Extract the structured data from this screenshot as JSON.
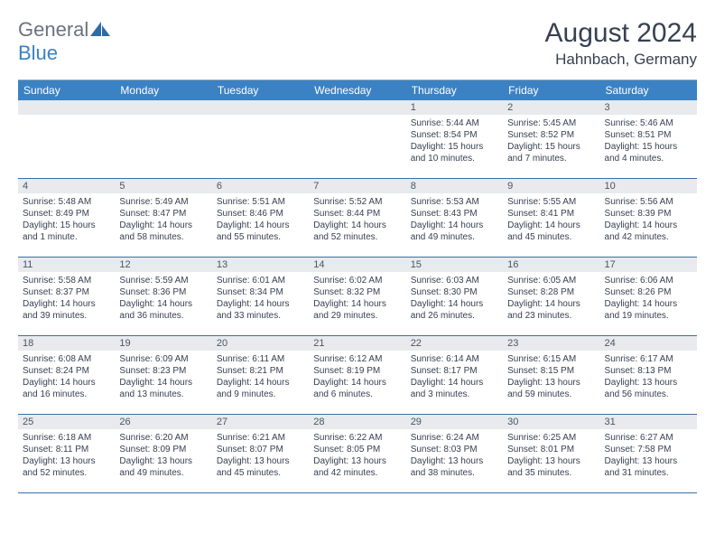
{
  "brand": {
    "part1": "General",
    "part2": "Blue"
  },
  "title": {
    "month": "August 2024",
    "location": "Hahnbach, Germany"
  },
  "colors": {
    "header_bg": "#3b82c4",
    "header_text": "#ffffff",
    "daynum_bg": "#e8eaed",
    "row_border": "#3b6fa8",
    "text": "#374151"
  },
  "dow": [
    "Sunday",
    "Monday",
    "Tuesday",
    "Wednesday",
    "Thursday",
    "Friday",
    "Saturday"
  ],
  "weeks": [
    [
      {
        "n": "",
        "sunrise": "",
        "sunset": "",
        "daylight": ""
      },
      {
        "n": "",
        "sunrise": "",
        "sunset": "",
        "daylight": ""
      },
      {
        "n": "",
        "sunrise": "",
        "sunset": "",
        "daylight": ""
      },
      {
        "n": "",
        "sunrise": "",
        "sunset": "",
        "daylight": ""
      },
      {
        "n": "1",
        "sunrise": "Sunrise: 5:44 AM",
        "sunset": "Sunset: 8:54 PM",
        "daylight": "Daylight: 15 hours and 10 minutes."
      },
      {
        "n": "2",
        "sunrise": "Sunrise: 5:45 AM",
        "sunset": "Sunset: 8:52 PM",
        "daylight": "Daylight: 15 hours and 7 minutes."
      },
      {
        "n": "3",
        "sunrise": "Sunrise: 5:46 AM",
        "sunset": "Sunset: 8:51 PM",
        "daylight": "Daylight: 15 hours and 4 minutes."
      }
    ],
    [
      {
        "n": "4",
        "sunrise": "Sunrise: 5:48 AM",
        "sunset": "Sunset: 8:49 PM",
        "daylight": "Daylight: 15 hours and 1 minute."
      },
      {
        "n": "5",
        "sunrise": "Sunrise: 5:49 AM",
        "sunset": "Sunset: 8:47 PM",
        "daylight": "Daylight: 14 hours and 58 minutes."
      },
      {
        "n": "6",
        "sunrise": "Sunrise: 5:51 AM",
        "sunset": "Sunset: 8:46 PM",
        "daylight": "Daylight: 14 hours and 55 minutes."
      },
      {
        "n": "7",
        "sunrise": "Sunrise: 5:52 AM",
        "sunset": "Sunset: 8:44 PM",
        "daylight": "Daylight: 14 hours and 52 minutes."
      },
      {
        "n": "8",
        "sunrise": "Sunrise: 5:53 AM",
        "sunset": "Sunset: 8:43 PM",
        "daylight": "Daylight: 14 hours and 49 minutes."
      },
      {
        "n": "9",
        "sunrise": "Sunrise: 5:55 AM",
        "sunset": "Sunset: 8:41 PM",
        "daylight": "Daylight: 14 hours and 45 minutes."
      },
      {
        "n": "10",
        "sunrise": "Sunrise: 5:56 AM",
        "sunset": "Sunset: 8:39 PM",
        "daylight": "Daylight: 14 hours and 42 minutes."
      }
    ],
    [
      {
        "n": "11",
        "sunrise": "Sunrise: 5:58 AM",
        "sunset": "Sunset: 8:37 PM",
        "daylight": "Daylight: 14 hours and 39 minutes."
      },
      {
        "n": "12",
        "sunrise": "Sunrise: 5:59 AM",
        "sunset": "Sunset: 8:36 PM",
        "daylight": "Daylight: 14 hours and 36 minutes."
      },
      {
        "n": "13",
        "sunrise": "Sunrise: 6:01 AM",
        "sunset": "Sunset: 8:34 PM",
        "daylight": "Daylight: 14 hours and 33 minutes."
      },
      {
        "n": "14",
        "sunrise": "Sunrise: 6:02 AM",
        "sunset": "Sunset: 8:32 PM",
        "daylight": "Daylight: 14 hours and 29 minutes."
      },
      {
        "n": "15",
        "sunrise": "Sunrise: 6:03 AM",
        "sunset": "Sunset: 8:30 PM",
        "daylight": "Daylight: 14 hours and 26 minutes."
      },
      {
        "n": "16",
        "sunrise": "Sunrise: 6:05 AM",
        "sunset": "Sunset: 8:28 PM",
        "daylight": "Daylight: 14 hours and 23 minutes."
      },
      {
        "n": "17",
        "sunrise": "Sunrise: 6:06 AM",
        "sunset": "Sunset: 8:26 PM",
        "daylight": "Daylight: 14 hours and 19 minutes."
      }
    ],
    [
      {
        "n": "18",
        "sunrise": "Sunrise: 6:08 AM",
        "sunset": "Sunset: 8:24 PM",
        "daylight": "Daylight: 14 hours and 16 minutes."
      },
      {
        "n": "19",
        "sunrise": "Sunrise: 6:09 AM",
        "sunset": "Sunset: 8:23 PM",
        "daylight": "Daylight: 14 hours and 13 minutes."
      },
      {
        "n": "20",
        "sunrise": "Sunrise: 6:11 AM",
        "sunset": "Sunset: 8:21 PM",
        "daylight": "Daylight: 14 hours and 9 minutes."
      },
      {
        "n": "21",
        "sunrise": "Sunrise: 6:12 AM",
        "sunset": "Sunset: 8:19 PM",
        "daylight": "Daylight: 14 hours and 6 minutes."
      },
      {
        "n": "22",
        "sunrise": "Sunrise: 6:14 AM",
        "sunset": "Sunset: 8:17 PM",
        "daylight": "Daylight: 14 hours and 3 minutes."
      },
      {
        "n": "23",
        "sunrise": "Sunrise: 6:15 AM",
        "sunset": "Sunset: 8:15 PM",
        "daylight": "Daylight: 13 hours and 59 minutes."
      },
      {
        "n": "24",
        "sunrise": "Sunrise: 6:17 AM",
        "sunset": "Sunset: 8:13 PM",
        "daylight": "Daylight: 13 hours and 56 minutes."
      }
    ],
    [
      {
        "n": "25",
        "sunrise": "Sunrise: 6:18 AM",
        "sunset": "Sunset: 8:11 PM",
        "daylight": "Daylight: 13 hours and 52 minutes."
      },
      {
        "n": "26",
        "sunrise": "Sunrise: 6:20 AM",
        "sunset": "Sunset: 8:09 PM",
        "daylight": "Daylight: 13 hours and 49 minutes."
      },
      {
        "n": "27",
        "sunrise": "Sunrise: 6:21 AM",
        "sunset": "Sunset: 8:07 PM",
        "daylight": "Daylight: 13 hours and 45 minutes."
      },
      {
        "n": "28",
        "sunrise": "Sunrise: 6:22 AM",
        "sunset": "Sunset: 8:05 PM",
        "daylight": "Daylight: 13 hours and 42 minutes."
      },
      {
        "n": "29",
        "sunrise": "Sunrise: 6:24 AM",
        "sunset": "Sunset: 8:03 PM",
        "daylight": "Daylight: 13 hours and 38 minutes."
      },
      {
        "n": "30",
        "sunrise": "Sunrise: 6:25 AM",
        "sunset": "Sunset: 8:01 PM",
        "daylight": "Daylight: 13 hours and 35 minutes."
      },
      {
        "n": "31",
        "sunrise": "Sunrise: 6:27 AM",
        "sunset": "Sunset: 7:58 PM",
        "daylight": "Daylight: 13 hours and 31 minutes."
      }
    ]
  ]
}
